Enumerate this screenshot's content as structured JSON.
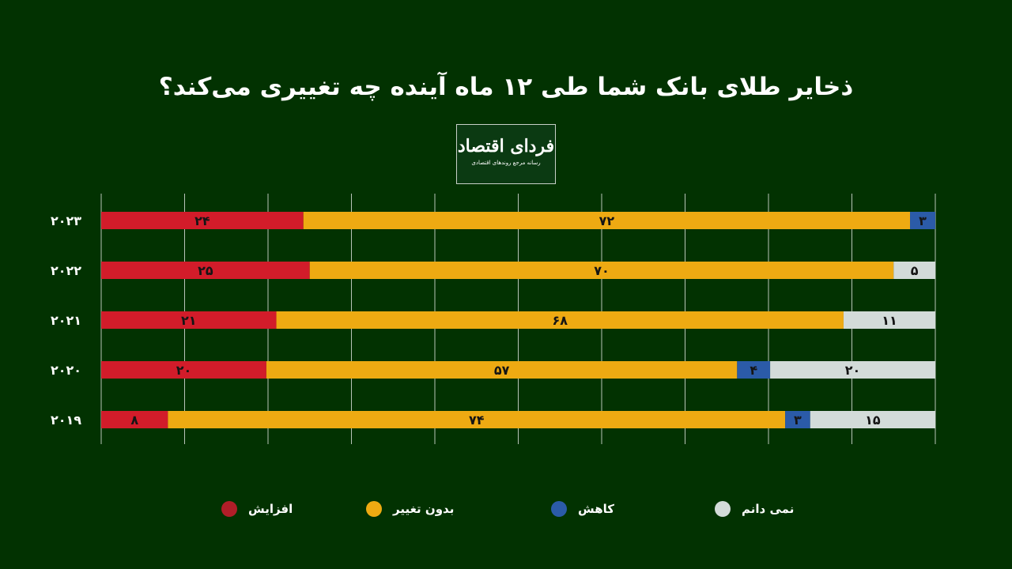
{
  "chart_data": {
    "type": "bar",
    "orientation": "horizontal",
    "stacked": true,
    "normalized_percent": true,
    "title": "ذخایر طلای بانک شما طی ۱۲ ماه آینده چه تغییری می‌کند؟",
    "categories": [
      "۲۰۲۳",
      "۲۰۲۲",
      "۲۰۲۱",
      "۲۰۲۰",
      "۲۰۱۹"
    ],
    "series": [
      {
        "name": "افزایش",
        "color": "#d21c2a",
        "values": [
          24,
          25,
          21,
          20,
          8
        ]
      },
      {
        "name": "بدون تغییر",
        "color": "#eeaa12",
        "values": [
          72,
          70,
          68,
          57,
          74
        ]
      },
      {
        "name": "کاهش",
        "color": "#2b5ba8",
        "values": [
          3,
          0,
          0,
          4,
          3
        ]
      },
      {
        "name": "نمی دانم",
        "color": "#d3dbd9",
        "values": [
          0,
          5,
          11,
          20,
          15
        ]
      }
    ],
    "xlim": [
      0,
      100
    ],
    "grid": true,
    "legend_position": "bottom"
  },
  "logo": {
    "main": "فردای اقتصاد",
    "sub": "رسانه مرجع روندهای اقتصادی"
  },
  "background": "#023201"
}
